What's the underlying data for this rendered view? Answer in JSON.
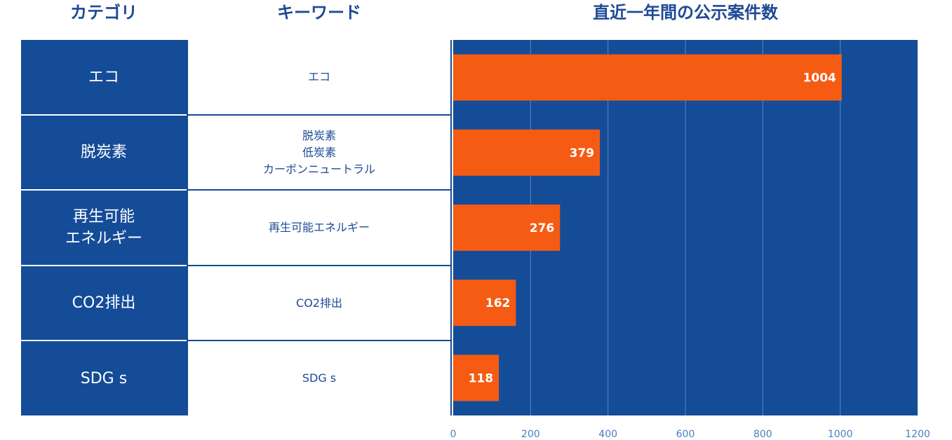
{
  "headers": {
    "category": "カテゴリ",
    "keyword": "キーワード",
    "count": "直近一年間の公示案件数"
  },
  "rows": [
    {
      "category": "エコ",
      "keywords": "エコ"
    },
    {
      "category": "脱炭素",
      "keywords": "脱炭素\n低炭素\nカーボンニュートラル"
    },
    {
      "category": "再生可能\nエネルギー",
      "keywords": "再生可能エネルギー"
    },
    {
      "category": "CO2排出",
      "keywords": "CO2排出"
    },
    {
      "category": "SDG s",
      "keywords": "SDG s"
    }
  ],
  "chart_data": {
    "type": "bar",
    "orientation": "horizontal",
    "categories": [
      "エコ",
      "脱炭素",
      "再生可能エネルギー",
      "CO2排出",
      "SDG s"
    ],
    "values": [
      1004,
      379,
      276,
      162,
      118
    ],
    "data_labels": [
      "1004",
      "379",
      "276",
      "162",
      "118"
    ],
    "xlim": [
      0,
      1200
    ],
    "xticks": [
      "0",
      "200",
      "400",
      "600",
      "800",
      "1000",
      "1200"
    ],
    "grid": true,
    "colors": {
      "background": "#154c98",
      "bar": "#f55b12",
      "grid": "#5a86c2",
      "label": "#ffffff",
      "tick": "#4a7dc0"
    }
  }
}
